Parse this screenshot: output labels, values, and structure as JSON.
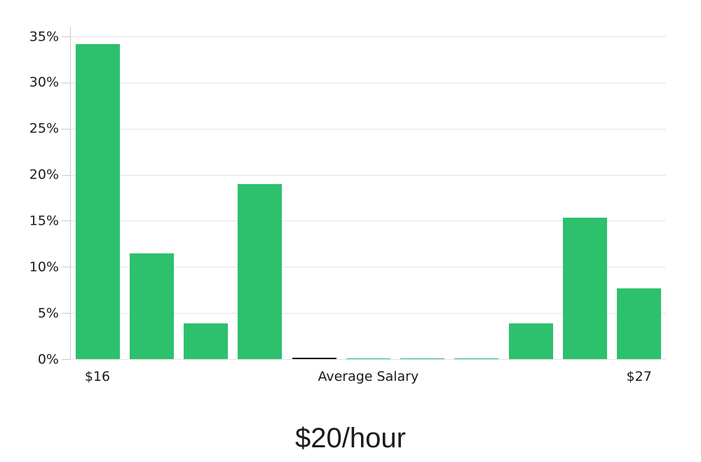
{
  "chart_data": {
    "type": "bar",
    "title": "$20/hour",
    "xlabel": "",
    "ylabel": "",
    "values": [
      34.2,
      11.5,
      3.9,
      19.0,
      0.15,
      0.1,
      0.1,
      0.1,
      3.9,
      15.3,
      7.7
    ],
    "bar_colors": [
      "green",
      "green",
      "green",
      "green",
      "dark",
      "green",
      "green",
      "green",
      "green",
      "green",
      "green"
    ],
    "x_ticks": [
      {
        "bar": 0,
        "label": "$16"
      },
      {
        "bar": 5,
        "label": "Average Salary"
      },
      {
        "bar": 10,
        "label": "$27"
      }
    ],
    "y_ticks": [
      {
        "value": 0,
        "label": "0%"
      },
      {
        "value": 5,
        "label": "5%"
      },
      {
        "value": 10,
        "label": "10%"
      },
      {
        "value": 15,
        "label": "15%"
      },
      {
        "value": 20,
        "label": "20%"
      },
      {
        "value": 25,
        "label": "25%"
      },
      {
        "value": 30,
        "label": "30%"
      },
      {
        "value": 35,
        "label": "35%"
      }
    ],
    "ylim": [
      0,
      36
    ],
    "grid": "horizontal",
    "legend": "none"
  },
  "colors": {
    "bar_green": "#2dc06d",
    "bar_dark": "#14161a",
    "gridline": "#e4e4e4",
    "axis": "#c9c9c9",
    "text": "#1b1b1b",
    "background": "#ffffff"
  }
}
